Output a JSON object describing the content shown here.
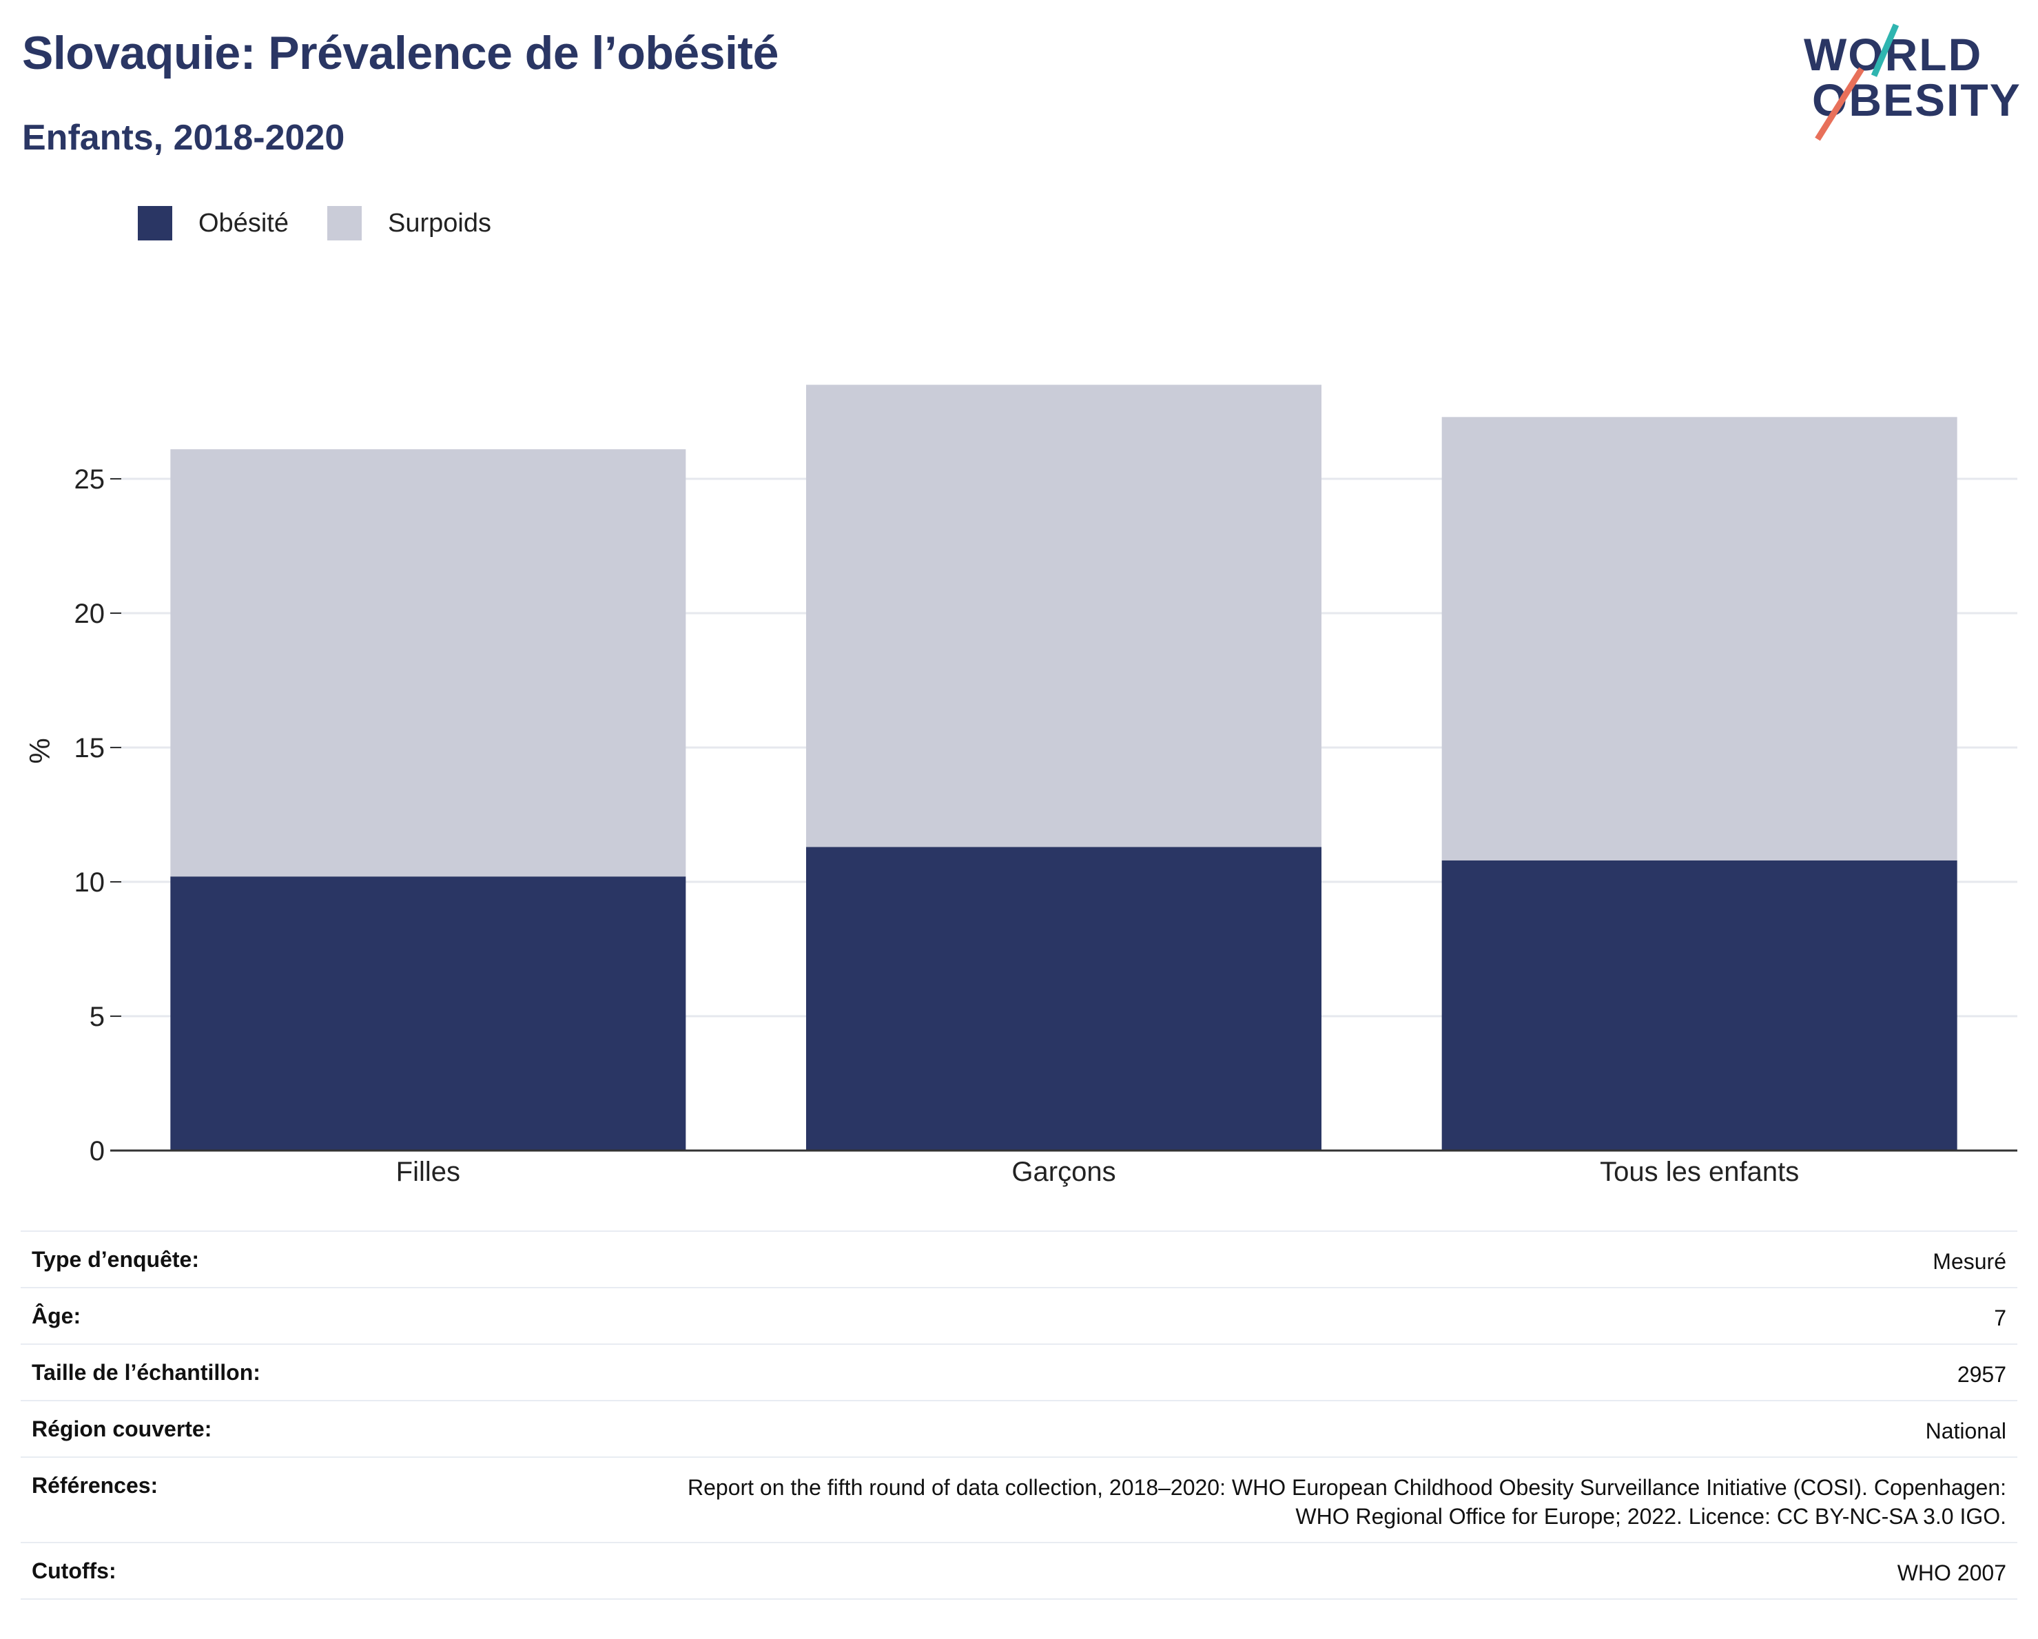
{
  "header": {
    "title": "Slovaquie: Prévalence de l’obésité",
    "subtitle": "Enfants, 2018-2020"
  },
  "logo": {
    "line1": "WORLD",
    "line2": "OBESITY"
  },
  "colors": {
    "obesity": "#2a3664",
    "overweight": "#caccd8",
    "grid": "#e6e8ee",
    "axis": "#333333",
    "logo_teal": "#2fb5b0",
    "logo_coral": "#e8705a"
  },
  "chart_data": {
    "type": "bar",
    "stacked": true,
    "categories": [
      "Filles",
      "Garçons",
      "Tous les enfants"
    ],
    "series": [
      {
        "name": "Obésité",
        "values": [
          10.2,
          11.3,
          10.8
        ]
      },
      {
        "name": "Surpoids",
        "values": [
          15.9,
          17.2,
          16.5
        ]
      }
    ],
    "ylabel": "%",
    "xlabel": "",
    "ylim": [
      0,
      28.5
    ],
    "yticks": [
      0,
      5,
      10,
      15,
      20,
      25
    ],
    "grid": true,
    "legend_position": "top-left"
  },
  "info": {
    "rows": [
      {
        "key": "Type d’enquête:",
        "value": "Mesuré"
      },
      {
        "key": "Âge:",
        "value": "7"
      },
      {
        "key": "Taille de l’échantillon:",
        "value": "2957"
      },
      {
        "key": "Région couverte:",
        "value": "National"
      },
      {
        "key": "Références:",
        "value_line1": "Report on the fifth round of data collection, 2018–2020: WHO European Childhood Obesity Surveillance Initiative (COSI). Copenhagen:",
        "value_line2": "WHO Regional Office for Europe; 2022. Licence: CC BY-NC-SA 3.0 IGO."
      },
      {
        "key": "Cutoffs:",
        "value": "WHO 2007"
      }
    ]
  }
}
